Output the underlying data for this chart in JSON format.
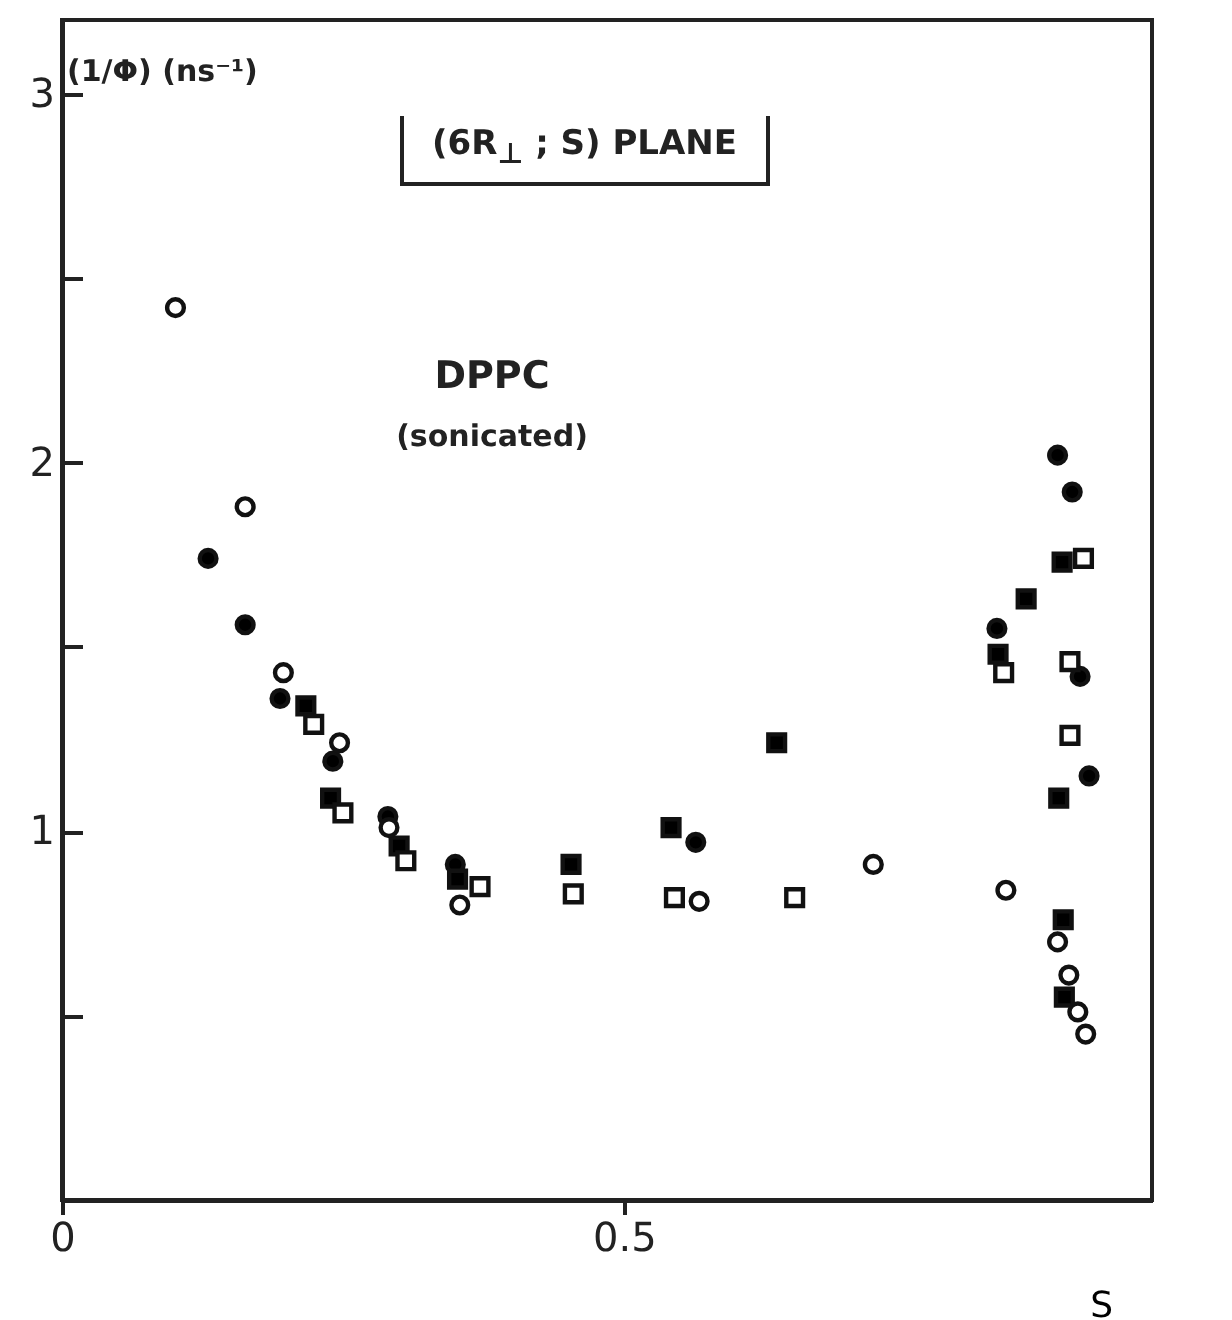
{
  "chart_data": {
    "type": "scatter",
    "title": "(6R$_{⊥}$ ; S)  PLANE",
    "xlabel": "S",
    "ylabel": "(1/Φ)  (ns⁻¹)",
    "annotations": [
      "DPPC",
      "(sonicated)"
    ],
    "xlim": [
      0,
      0.97
    ],
    "ylim": [
      0,
      3.2
    ],
    "xticks": [
      0,
      0.5
    ],
    "yticks": [
      {
        "value": 0.5,
        "label": null
      },
      1,
      {
        "value": 1.5,
        "label": null
      },
      2,
      {
        "value": 2.5,
        "label": null
      },
      3
    ],
    "grid": false,
    "series": [
      {
        "marker": "circle",
        "color": "#000000",
        "x": [
          0.13,
          0.163,
          0.194,
          0.241,
          0.29,
          0.35,
          0.564,
          0.886,
          0.899,
          0.832,
          0.906,
          0.914
        ],
        "values": [
          1.74,
          1.56,
          1.36,
          1.19,
          1.04,
          0.91,
          0.97,
          2.02,
          1.92,
          1.55,
          1.42,
          1.15
        ]
      },
      {
        "marker": "square",
        "color": "#000000",
        "x": [
          0.217,
          0.239,
          0.3,
          0.352,
          0.453,
          0.542,
          0.636,
          0.89,
          0.858,
          0.833,
          0.887,
          0.891,
          0.892
        ],
        "values": [
          1.34,
          1.09,
          0.96,
          0.87,
          0.91,
          1.01,
          1.24,
          1.73,
          1.63,
          1.48,
          1.09,
          0.76,
          0.55
        ]
      },
      {
        "marker": "square",
        "color": "#ffffff",
        "x": [
          0.224,
          0.25,
          0.306,
          0.372,
          0.455,
          0.545,
          0.652,
          0.909,
          0.838,
          0.897,
          0.897
        ],
        "values": [
          1.29,
          1.05,
          0.92,
          0.85,
          0.83,
          0.82,
          0.82,
          1.74,
          1.43,
          1.46,
          1.26
        ]
      },
      {
        "marker": "circle",
        "color": "#ffffff",
        "x": [
          0.101,
          0.163,
          0.197,
          0.247,
          0.291,
          0.354,
          0.567,
          0.722,
          0.84,
          0.886,
          0.896,
          0.904,
          0.911
        ],
        "values": [
          2.42,
          1.88,
          1.43,
          1.24,
          1.01,
          0.8,
          0.81,
          0.91,
          0.84,
          0.7,
          0.61,
          0.51,
          0.45
        ]
      }
    ]
  }
}
